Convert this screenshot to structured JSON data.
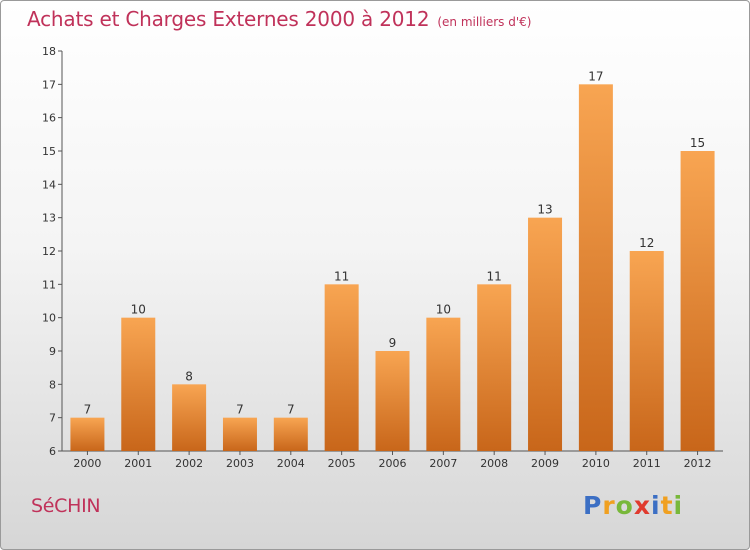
{
  "title": "Achats et Charges Externes 2000 à 2012",
  "unit": "(en milliers d'€)",
  "commune": "SéCHIN",
  "logo": {
    "letters": [
      "P",
      "r",
      "o",
      "x",
      "i",
      "t",
      "i"
    ],
    "colors": [
      "#3c6fc4",
      "#f0a020",
      "#78b83a",
      "#e03a2e",
      "#3c6fc4",
      "#f0a020",
      "#78b83a"
    ]
  },
  "chart_data": {
    "type": "bar",
    "categories": [
      "2000",
      "2001",
      "2002",
      "2003",
      "2004",
      "2005",
      "2006",
      "2007",
      "2008",
      "2009",
      "2010",
      "2011",
      "2012"
    ],
    "values": [
      7,
      10,
      8,
      7,
      7,
      11,
      9,
      10,
      11,
      13,
      17,
      12,
      15
    ],
    "ylim": [
      6,
      18
    ],
    "yticks": [
      6,
      7,
      8,
      9,
      10,
      11,
      12,
      13,
      14,
      15,
      16,
      17,
      18
    ],
    "bar_color_top": "#f8a552",
    "bar_color_bottom": "#c8661a",
    "grid": false
  }
}
